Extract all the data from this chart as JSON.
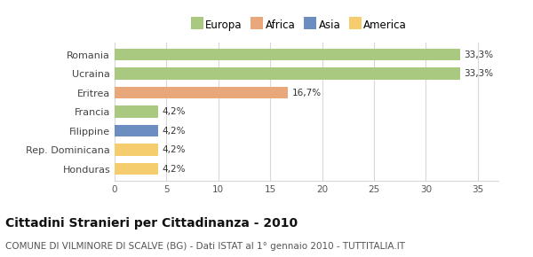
{
  "categories": [
    "Romania",
    "Ucraina",
    "Eritrea",
    "Francia",
    "Filippine",
    "Rep. Dominicana",
    "Honduras"
  ],
  "values": [
    33.3,
    33.3,
    16.7,
    4.2,
    4.2,
    4.2,
    4.2
  ],
  "labels": [
    "33,3%",
    "33,3%",
    "16,7%",
    "4,2%",
    "4,2%",
    "4,2%",
    "4,2%"
  ],
  "colors": [
    "#a8c97f",
    "#a8c97f",
    "#e8a87c",
    "#a8c97f",
    "#6b8dbf",
    "#f5cc6e",
    "#f5cc6e"
  ],
  "legend": [
    {
      "label": "Europa",
      "color": "#a8c97f"
    },
    {
      "label": "Africa",
      "color": "#e8a87c"
    },
    {
      "label": "Asia",
      "color": "#6b8dbf"
    },
    {
      "label": "America",
      "color": "#f5cc6e"
    }
  ],
  "xlim": [
    0,
    37
  ],
  "xticks": [
    0,
    5,
    10,
    15,
    20,
    25,
    30,
    35
  ],
  "title": "Cittadini Stranieri per Cittadinanza - 2010",
  "subtitle": "COMUNE DI VILMINORE DI SCALVE (BG) - Dati ISTAT al 1° gennaio 2010 - TUTTITALIA.IT",
  "title_fontsize": 10,
  "subtitle_fontsize": 7.5,
  "bar_height": 0.62,
  "background_color": "#ffffff",
  "grid_color": "#d8d8d8"
}
